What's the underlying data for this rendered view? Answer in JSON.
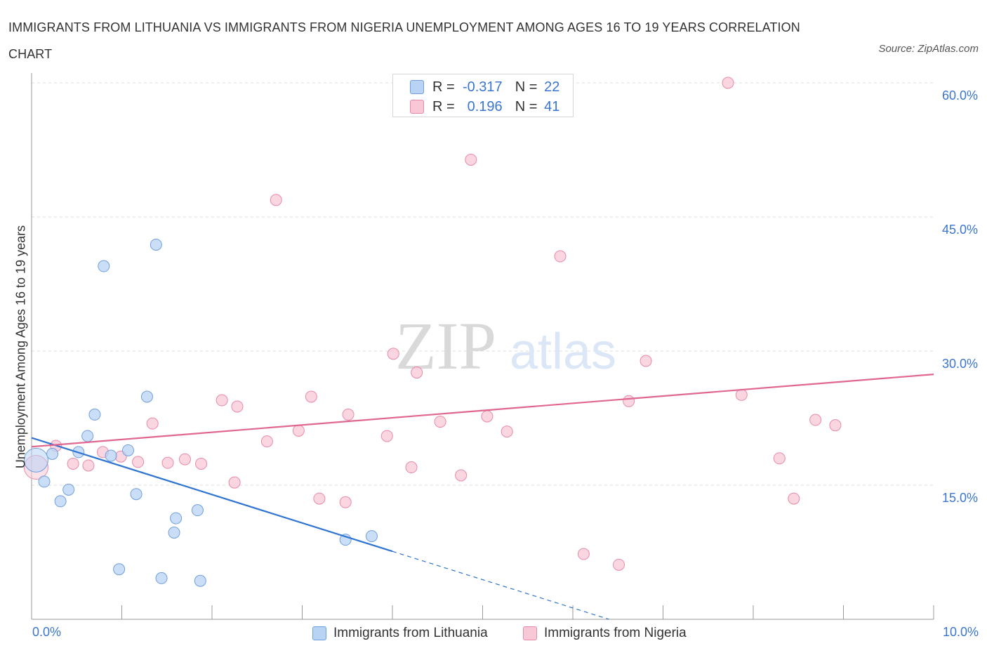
{
  "title": "IMMIGRANTS FROM LITHUANIA VS IMMIGRANTS FROM NIGERIA UNEMPLOYMENT AMONG AGES 16 TO 19 YEARS CORRELATION CHART",
  "source": "Source: ZipAtlas.com",
  "watermark": {
    "zip": "ZIP",
    "atlas": "atlas"
  },
  "legend_stats": [
    {
      "r_label": "R =",
      "r_value": "-0.317",
      "n_label": "N =",
      "n_value": "22"
    },
    {
      "r_label": "R =",
      "r_value": "0.196",
      "n_label": "N =",
      "n_value": "41"
    }
  ],
  "colors": {
    "lithuania_fill": "#b9d3f5",
    "lithuania_stroke": "#6f9fdc",
    "lithuania_line": "#2f74d0",
    "nigeria_fill": "#f8c8d6",
    "nigeria_stroke": "#e88aa7",
    "nigeria_line": "#e0678e",
    "axis_label": "#3a76d0",
    "grid": "#dddddd"
  },
  "chart_data": {
    "type": "scatter",
    "title": "IMMIGRANTS FROM LITHUANIA VS IMMIGRANTS FROM NIGERIA UNEMPLOYMENT AMONG AGES 16 TO 19 YEARS CORRELATION CHART",
    "xlabel": "",
    "ylabel": "Unemployment Among Ages 16 to 19 years",
    "x_unit": "%",
    "xlim": [
      0,
      10
    ],
    "ylim": [
      0,
      60
    ],
    "x_tick_labels": [
      "0.0%",
      "10.0%"
    ],
    "y_ticks": [
      15,
      30,
      45,
      60
    ],
    "y_tick_labels": [
      "15.0%",
      "30.0%",
      "45.0%",
      "60.0%"
    ],
    "grid": true,
    "legend_position": "bottom-center",
    "series": [
      {
        "name": "Immigrants from Lithuania",
        "color": "#b9d3f5",
        "points": [
          [
            0.05,
            17.8
          ],
          [
            0.14,
            15.4
          ],
          [
            0.23,
            18.5
          ],
          [
            0.32,
            13.2
          ],
          [
            0.41,
            14.5
          ],
          [
            0.52,
            18.7
          ],
          [
            0.62,
            20.5
          ],
          [
            0.7,
            22.9
          ],
          [
            0.8,
            39.5
          ],
          [
            0.88,
            18.3
          ],
          [
            0.97,
            5.6
          ],
          [
            1.07,
            18.9
          ],
          [
            1.28,
            24.9
          ],
          [
            1.16,
            14.0
          ],
          [
            1.38,
            41.9
          ],
          [
            1.44,
            4.6
          ],
          [
            1.58,
            9.7
          ],
          [
            1.6,
            11.3
          ],
          [
            1.84,
            12.2
          ],
          [
            1.87,
            4.3
          ],
          [
            3.48,
            8.9
          ],
          [
            3.77,
            9.3
          ]
        ],
        "trend": {
          "x": [
            0.0,
            4.0
          ],
          "y": [
            20.3,
            7.6
          ],
          "dashed_extension_x": [
            4.0,
            6.4
          ],
          "dashed_extension_y": [
            7.6,
            0.0
          ]
        }
      },
      {
        "name": "Immigrants from Nigeria",
        "color": "#f8c8d6",
        "points": [
          [
            0.05,
            17.0
          ],
          [
            0.27,
            19.4
          ],
          [
            0.46,
            17.4
          ],
          [
            0.63,
            17.2
          ],
          [
            0.79,
            18.7
          ],
          [
            0.99,
            18.2
          ],
          [
            1.18,
            17.6
          ],
          [
            1.34,
            21.9
          ],
          [
            1.51,
            17.5
          ],
          [
            1.7,
            17.9
          ],
          [
            1.88,
            17.4
          ],
          [
            2.11,
            24.5
          ],
          [
            2.28,
            23.8
          ],
          [
            2.25,
            15.3
          ],
          [
            2.61,
            19.9
          ],
          [
            2.71,
            46.9
          ],
          [
            2.96,
            21.1
          ],
          [
            3.1,
            24.9
          ],
          [
            3.19,
            13.5
          ],
          [
            3.48,
            13.1
          ],
          [
            3.51,
            22.9
          ],
          [
            3.94,
            20.5
          ],
          [
            4.01,
            29.7
          ],
          [
            4.21,
            17.0
          ],
          [
            4.27,
            27.6
          ],
          [
            4.53,
            22.1
          ],
          [
            4.76,
            16.1
          ],
          [
            4.87,
            51.4
          ],
          [
            5.05,
            22.7
          ],
          [
            5.27,
            21.0
          ],
          [
            5.86,
            40.6
          ],
          [
            6.12,
            7.3
          ],
          [
            6.51,
            6.1
          ],
          [
            6.62,
            24.4
          ],
          [
            6.81,
            28.9
          ],
          [
            7.72,
            60.0
          ],
          [
            7.87,
            25.1
          ],
          [
            8.29,
            18.0
          ],
          [
            8.45,
            13.5
          ],
          [
            8.69,
            22.3
          ],
          [
            8.91,
            21.7
          ]
        ],
        "trend": {
          "x": [
            0.0,
            10.0
          ],
          "y": [
            19.3,
            27.4
          ]
        }
      }
    ]
  }
}
